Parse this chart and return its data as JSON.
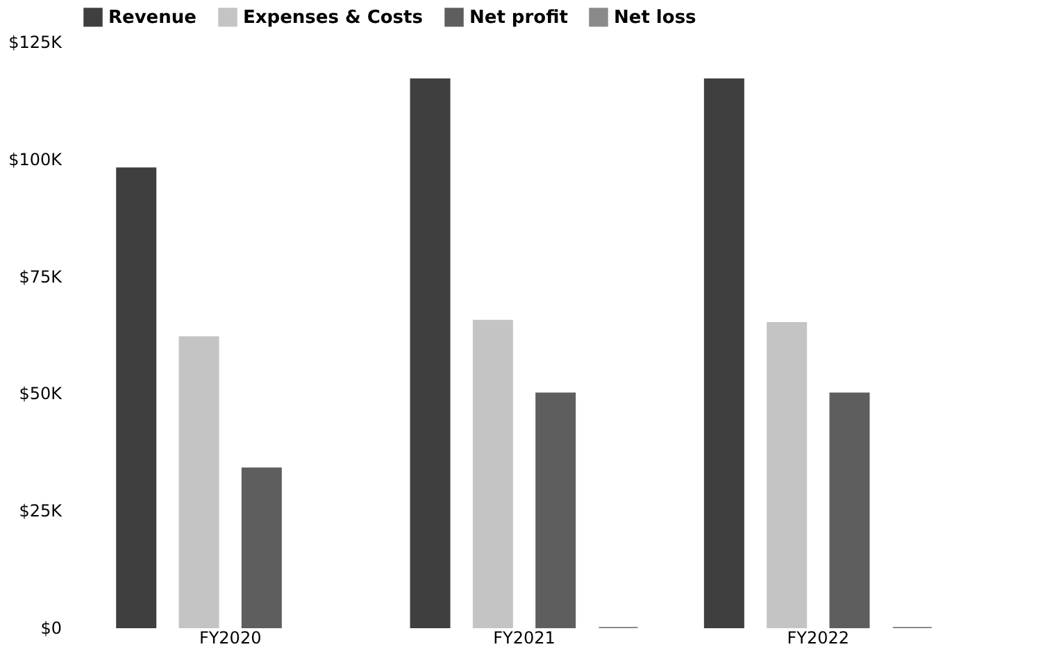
{
  "chart_data": {
    "type": "bar",
    "categories": [
      "FY2020",
      "FY2021",
      "FY2022"
    ],
    "series": [
      {
        "name": "Revenue",
        "color": "#3f3f3f",
        "values": [
          98000,
          117000,
          117000
        ]
      },
      {
        "name": "Expenses & Costs",
        "color": "#c4c4c4",
        "values": [
          62000,
          65500,
          65000
        ]
      },
      {
        "name": "Net profit",
        "color": "#5e5e5e",
        "values": [
          34000,
          50000,
          50000
        ]
      },
      {
        "name": "Net loss",
        "color": "#8a8a8a",
        "values": [
          null,
          0,
          0
        ]
      }
    ],
    "ylim": [
      0,
      125000
    ],
    "yticks": [
      {
        "value": 0,
        "label": "$0"
      },
      {
        "value": 25000,
        "label": "$25K"
      },
      {
        "value": 50000,
        "label": "$50K"
      },
      {
        "value": 75000,
        "label": "$75K"
      },
      {
        "value": 100000,
        "label": "$100K"
      },
      {
        "value": 125000,
        "label": "$125K"
      }
    ],
    "grid": false,
    "legend": "top left"
  }
}
